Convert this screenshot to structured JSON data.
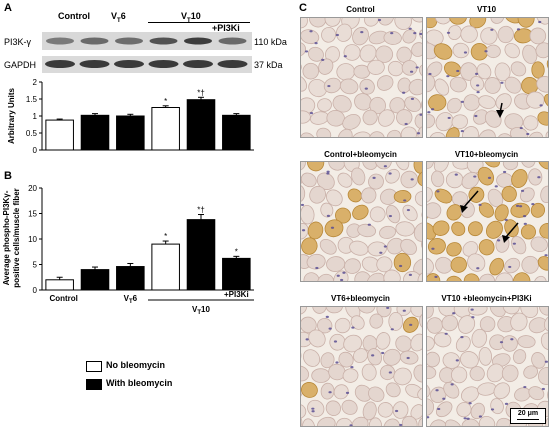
{
  "panelA": {
    "letter": "A",
    "groups": {
      "control": "Control",
      "vt6": "V",
      "vt6_sub": "T",
      "vt6_tail": "6",
      "vt10": "V",
      "vt10_sub": "T",
      "vt10_tail": "10",
      "pi3ki": "+PI3Ki"
    },
    "blots": [
      {
        "name": "PI3K-γ",
        "size": "110 kDa"
      },
      {
        "name": "GAPDH",
        "size": "37 kDa"
      }
    ]
  },
  "panelB": {
    "letter": "B",
    "groups": {
      "control": "Control",
      "vt6": "V",
      "vt6_sub": "T",
      "vt6_tail": "6",
      "pi3ki": "+PI3Ki",
      "vt10": "V",
      "vt10_sub": "T",
      "vt10_tail": "10"
    }
  },
  "panelC": {
    "letter": "C",
    "images": [
      {
        "label": "Control"
      },
      {
        "label": "VT10"
      },
      {
        "label": "Control+bleomycin"
      },
      {
        "label": "VT10+bleomycin"
      },
      {
        "label": "VT6+bleomycin"
      },
      {
        "label": "VT10 +bleomycin+PI3Ki"
      }
    ],
    "scale_bar": "20 μm"
  },
  "legend": {
    "items": [
      {
        "label": "No bleomycin",
        "color": "#ffffff"
      },
      {
        "label": "With bleomycin",
        "color": "#000000"
      }
    ]
  },
  "chart_data": [
    {
      "type": "bar",
      "ylabel": "Arbitrary Units",
      "ylim": [
        0,
        2
      ],
      "yticks": [
        "0",
        "0.5",
        "1",
        "1.5",
        "2"
      ],
      "bars": [
        {
          "value": 0.88,
          "error": 0.03,
          "fill": "#ffffff",
          "mark": ""
        },
        {
          "value": 1.02,
          "error": 0.05,
          "fill": "#000000",
          "mark": ""
        },
        {
          "value": 1.0,
          "error": 0.05,
          "fill": "#000000",
          "mark": ""
        },
        {
          "value": 1.25,
          "error": 0.05,
          "fill": "#ffffff",
          "mark": "*"
        },
        {
          "value": 1.48,
          "error": 0.07,
          "fill": "#000000",
          "mark": "*†"
        },
        {
          "value": 1.02,
          "error": 0.05,
          "fill": "#000000",
          "mark": ""
        }
      ]
    },
    {
      "type": "bar",
      "ylabel": "Average phospho-PI3Kγ-positive cells/muscle fiber",
      "ylim": [
        0,
        20
      ],
      "yticks": [
        "0",
        "5",
        "10",
        "15",
        "20"
      ],
      "bars": [
        {
          "value": 2.0,
          "error": 0.5,
          "fill": "#ffffff",
          "mark": ""
        },
        {
          "value": 4.0,
          "error": 0.5,
          "fill": "#000000",
          "mark": ""
        },
        {
          "value": 4.6,
          "error": 0.6,
          "fill": "#000000",
          "mark": ""
        },
        {
          "value": 9.0,
          "error": 0.6,
          "fill": "#ffffff",
          "mark": "*"
        },
        {
          "value": 13.8,
          "error": 1.0,
          "fill": "#000000",
          "mark": "*†"
        },
        {
          "value": 6.2,
          "error": 0.4,
          "fill": "#000000",
          "mark": "*"
        }
      ]
    }
  ]
}
